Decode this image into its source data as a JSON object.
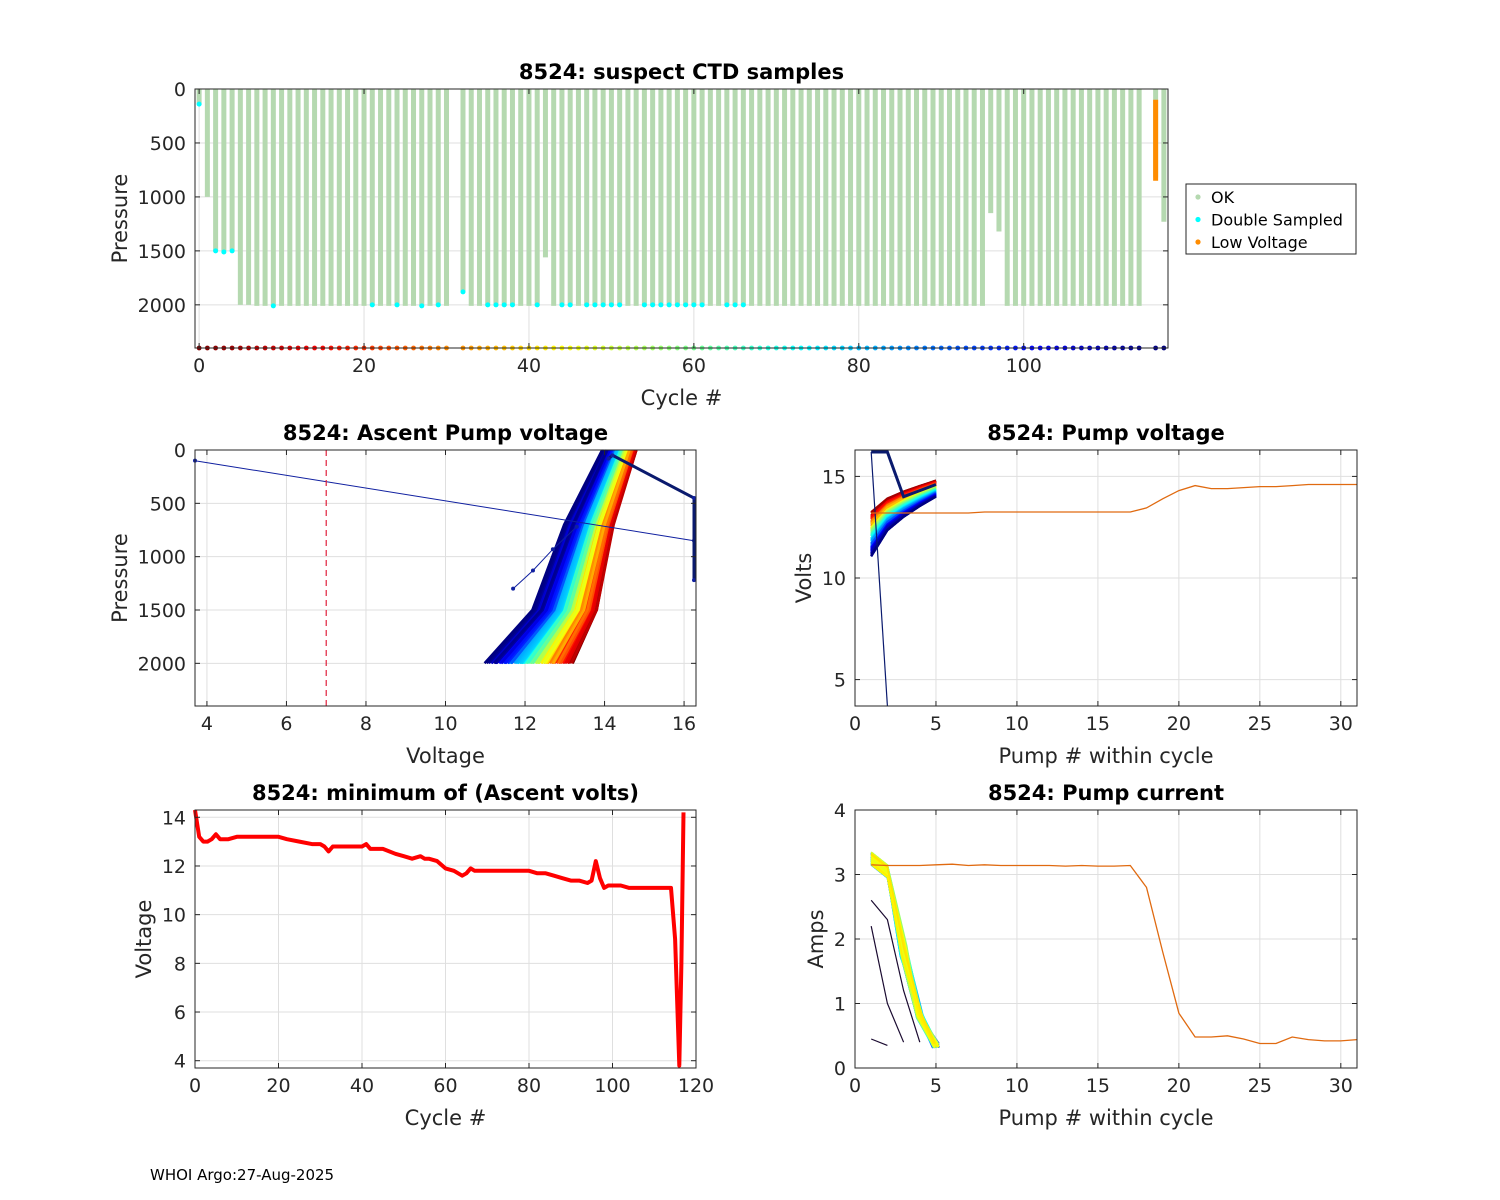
{
  "footer": "WHOI Argo:27-Aug-2025",
  "colors": {
    "ok": "#b5d9b0",
    "double_sampled": "#00ffff",
    "low_voltage": "#ff8c00",
    "red_line": "#ff0000",
    "orange_line": "#e06a10",
    "threshold": "#e0203c"
  },
  "chart_data": [
    {
      "id": "suspect",
      "type": "bar",
      "title": "8524: suspect CTD samples",
      "xlabel": "Cycle #",
      "ylabel": "Pressure",
      "xlim": [
        -0.5,
        117.5
      ],
      "ylim": [
        2400,
        0
      ],
      "x_ticks": [
        0,
        20,
        40,
        60,
        80,
        100
      ],
      "y_ticks": [
        0,
        500,
        1000,
        1500,
        2000
      ],
      "legend": [
        "OK",
        "Double Sampled",
        "Low Voltage"
      ],
      "legend_position": "right",
      "cycles": [
        0,
        1,
        2,
        3,
        4,
        5,
        6,
        7,
        8,
        9,
        10,
        11,
        12,
        13,
        14,
        15,
        16,
        17,
        18,
        19,
        20,
        21,
        22,
        23,
        24,
        25,
        26,
        27,
        28,
        29,
        30,
        32,
        33,
        34,
        35,
        36,
        37,
        38,
        39,
        40,
        41,
        42,
        43,
        44,
        45,
        46,
        47,
        48,
        49,
        50,
        51,
        52,
        53,
        54,
        55,
        56,
        57,
        58,
        59,
        60,
        61,
        62,
        63,
        64,
        65,
        66,
        67,
        68,
        69,
        70,
        71,
        72,
        73,
        74,
        75,
        76,
        77,
        78,
        79,
        80,
        81,
        82,
        83,
        84,
        85,
        86,
        87,
        88,
        89,
        90,
        91,
        92,
        93,
        94,
        95,
        96,
        97,
        98,
        99,
        100,
        101,
        102,
        103,
        104,
        105,
        106,
        107,
        108,
        109,
        110,
        111,
        112,
        113,
        114,
        116,
        117
      ],
      "max_pressure": [
        140,
        1000,
        1500,
        1500,
        1500,
        2000,
        2000,
        2010,
        2010,
        2010,
        2010,
        2010,
        2010,
        2010,
        2010,
        2010,
        2010,
        2010,
        2010,
        2010,
        2010,
        2010,
        2010,
        2010,
        2010,
        2010,
        2010,
        2010,
        2010,
        2010,
        2010,
        1880,
        2010,
        2010,
        2010,
        2010,
        2010,
        2010,
        2010,
        2010,
        2010,
        1560,
        2010,
        2010,
        2010,
        2010,
        2010,
        2010,
        2010,
        2010,
        2010,
        2010,
        2010,
        2010,
        2010,
        2010,
        2010,
        2010,
        2010,
        2010,
        2010,
        2010,
        2010,
        2010,
        2010,
        2010,
        2010,
        2010,
        2010,
        2010,
        2010,
        2010,
        2010,
        2010,
        2010,
        2010,
        2010,
        2010,
        2010,
        2010,
        2010,
        2010,
        2010,
        2010,
        2010,
        2010,
        2010,
        2010,
        2010,
        2010,
        2010,
        2010,
        2010,
        2010,
        2010,
        1150,
        1320,
        2010,
        2010,
        2010,
        2010,
        2010,
        2010,
        2010,
        2010,
        2010,
        2010,
        2010,
        2010,
        2010,
        2010,
        2010,
        2010,
        2010,
        820,
        1230
      ],
      "double_sampled_points": [
        [
          0,
          140
        ],
        [
          2,
          1500
        ],
        [
          3,
          1510
        ],
        [
          4,
          1500
        ],
        [
          9,
          2010
        ],
        [
          21,
          2000
        ],
        [
          24,
          2000
        ],
        [
          27,
          2010
        ],
        [
          29,
          2000
        ],
        [
          32,
          1880
        ],
        [
          35,
          2000
        ],
        [
          36,
          2000
        ],
        [
          37,
          2000
        ],
        [
          38,
          2000
        ],
        [
          41,
          2000
        ],
        [
          44,
          2000
        ],
        [
          45,
          2000
        ],
        [
          47,
          2000
        ],
        [
          48,
          2000
        ],
        [
          49,
          2000
        ],
        [
          50,
          2000
        ],
        [
          51,
          2000
        ],
        [
          54,
          2000
        ],
        [
          55,
          2000
        ],
        [
          56,
          2000
        ],
        [
          57,
          2000
        ],
        [
          58,
          2000
        ],
        [
          59,
          2000
        ],
        [
          60,
          2000
        ],
        [
          61,
          2000
        ],
        [
          64,
          2000
        ],
        [
          65,
          2000
        ],
        [
          66,
          2000
        ]
      ],
      "low_voltage_range": {
        "cycle": 116,
        "from": 100,
        "to": 850
      }
    },
    {
      "id": "ascent",
      "type": "line",
      "title": "8524: Ascent Pump voltage",
      "xlabel": "Voltage",
      "ylabel": "Pressure",
      "xlim": [
        3.7,
        16.3
      ],
      "ylim": [
        2400,
        0
      ],
      "x_ticks": [
        4,
        6,
        8,
        10,
        12,
        14,
        16
      ],
      "y_ticks": [
        0,
        500,
        1000,
        1500,
        2000
      ],
      "threshold_voltage": 7,
      "n_profiles": 114,
      "profile_shape": {
        "start": {
          "voltage": [
            11.1,
            13.2
          ],
          "pressure": 2000
        },
        "knee": {
          "voltage": [
            12.3,
            13.8
          ],
          "pressure": 1500
        },
        "mid": {
          "voltage": [
            13.1,
            14.2
          ],
          "pressure": 700
        },
        "top": {
          "voltage": [
            14.0,
            14.8
          ],
          "pressure": 0
        }
      },
      "anomalous_profiles": [
        {
          "voltage": [
            3.7,
            16.25
          ],
          "pressure": [
            100,
            850
          ]
        },
        {
          "voltage": [
            14.1,
            14.2,
            16.25,
            16.25
          ],
          "pressure": [
            80,
            50,
            450,
            1220
          ]
        },
        {
          "voltage": [
            11.7,
            12.2,
            12.7,
            13.3
          ],
          "pressure": [
            1300,
            1130,
            930,
            720
          ]
        }
      ]
    },
    {
      "id": "pump_voltage",
      "type": "line",
      "title": "8524: Pump voltage",
      "xlabel": "Pump # within cycle",
      "ylabel": "Volts",
      "xlim": [
        0,
        31
      ],
      "ylim": [
        3.7,
        16.3
      ],
      "x_ticks": [
        0,
        5,
        10,
        15,
        20,
        25,
        30
      ],
      "y_ticks": [
        5,
        10,
        15
      ],
      "n_profiles": 114,
      "profile_shape": {
        "x": [
          1,
          2,
          3,
          4,
          5
        ],
        "start_range": [
          11.1,
          13.2
        ],
        "end_range": [
          14.0,
          14.8
        ]
      },
      "anomalous_profiles": [
        {
          "x": [
            1,
            2,
            3,
            4,
            5
          ],
          "y": [
            16.2,
            16.2,
            14.0,
            14.3,
            14.6
          ]
        },
        {
          "x": [
            1,
            2
          ],
          "y": [
            16.2,
            3.7
          ]
        }
      ],
      "long_profile": {
        "x": [
          1,
          2,
          3,
          4,
          5,
          6,
          7,
          8,
          9,
          10,
          11,
          12,
          13,
          14,
          15,
          16,
          17,
          18,
          19,
          20,
          21,
          22,
          23,
          24,
          25,
          26,
          27,
          28,
          29,
          30,
          31
        ],
        "y": [
          13.2,
          13.2,
          13.2,
          13.2,
          13.2,
          13.2,
          13.2,
          13.25,
          13.25,
          13.25,
          13.25,
          13.25,
          13.25,
          13.25,
          13.25,
          13.25,
          13.25,
          13.45,
          13.9,
          14.3,
          14.55,
          14.4,
          14.4,
          14.45,
          14.5,
          14.5,
          14.55,
          14.6,
          14.6,
          14.6,
          14.6
        ]
      }
    },
    {
      "id": "min_volts",
      "type": "line",
      "title": "8524: minimum of (Ascent volts)",
      "xlabel": "Cycle #",
      "ylabel": "Voltage",
      "xlim": [
        0,
        120
      ],
      "ylim": [
        3.7,
        14.3
      ],
      "x_ticks": [
        0,
        20,
        40,
        60,
        80,
        100,
        120
      ],
      "y_ticks": [
        4,
        6,
        8,
        10,
        12,
        14
      ],
      "x": [
        0,
        1,
        2,
        3,
        4,
        5,
        6,
        8,
        10,
        12,
        15,
        18,
        20,
        22,
        25,
        28,
        30,
        31,
        32,
        33,
        35,
        38,
        40,
        41,
        42,
        43,
        45,
        48,
        50,
        52,
        54,
        55,
        56,
        58,
        60,
        62,
        64,
        65,
        66,
        67,
        68,
        70,
        72,
        75,
        78,
        80,
        82,
        84,
        86,
        88,
        90,
        92,
        94,
        95,
        96,
        97,
        98,
        99,
        100,
        102,
        104,
        106,
        108,
        110,
        112,
        114,
        115,
        116,
        116.5,
        117
      ],
      "y": [
        14.3,
        13.2,
        13.0,
        13.0,
        13.1,
        13.3,
        13.1,
        13.1,
        13.2,
        13.2,
        13.2,
        13.2,
        13.2,
        13.1,
        13.0,
        12.9,
        12.9,
        12.8,
        12.6,
        12.8,
        12.8,
        12.8,
        12.8,
        12.9,
        12.7,
        12.7,
        12.7,
        12.5,
        12.4,
        12.3,
        12.4,
        12.3,
        12.3,
        12.2,
        11.9,
        11.8,
        11.6,
        11.7,
        11.9,
        11.8,
        11.8,
        11.8,
        11.8,
        11.8,
        11.8,
        11.8,
        11.7,
        11.7,
        11.6,
        11.5,
        11.4,
        11.4,
        11.3,
        11.4,
        12.2,
        11.5,
        11.1,
        11.2,
        11.2,
        11.2,
        11.1,
        11.1,
        11.1,
        11.1,
        11.1,
        11.1,
        9.0,
        3.8,
        8.0,
        14.2
      ]
    },
    {
      "id": "pump_current",
      "type": "line",
      "title": "8524: Pump current",
      "xlabel": "Pump # within cycle",
      "ylabel": "Amps",
      "xlim": [
        0,
        31
      ],
      "ylim": [
        0,
        4
      ],
      "x_ticks": [
        0,
        5,
        10,
        15,
        20,
        25,
        30
      ],
      "y_ticks": [
        0,
        1,
        2,
        3,
        4
      ],
      "n_profiles": 114,
      "profile_shape": {
        "x": [
          1,
          2,
          3,
          4,
          5
        ],
        "y": [
          3.25,
          3.05,
          1.8,
          0.8,
          0.35
        ]
      },
      "anomalous_profiles": [
        {
          "x": [
            1,
            2,
            3,
            4
          ],
          "y": [
            2.6,
            2.3,
            1.2,
            0.4
          ]
        },
        {
          "x": [
            1,
            2,
            3
          ],
          "y": [
            2.2,
            1.0,
            0.4
          ]
        },
        {
          "x": [
            1,
            2
          ],
          "y": [
            0.45,
            0.35
          ]
        }
      ],
      "long_profile": {
        "x": [
          1,
          2,
          3,
          4,
          5,
          6,
          7,
          8,
          9,
          10,
          11,
          12,
          13,
          14,
          15,
          16,
          17,
          18,
          19,
          20,
          21,
          22,
          23,
          24,
          25,
          26,
          27,
          28,
          29,
          30,
          31
        ],
        "y": [
          3.15,
          3.14,
          3.14,
          3.14,
          3.15,
          3.16,
          3.14,
          3.15,
          3.14,
          3.14,
          3.14,
          3.14,
          3.13,
          3.14,
          3.13,
          3.13,
          3.14,
          2.8,
          1.8,
          0.85,
          0.48,
          0.48,
          0.5,
          0.45,
          0.38,
          0.38,
          0.48,
          0.44,
          0.42,
          0.42,
          0.44
        ]
      }
    }
  ]
}
